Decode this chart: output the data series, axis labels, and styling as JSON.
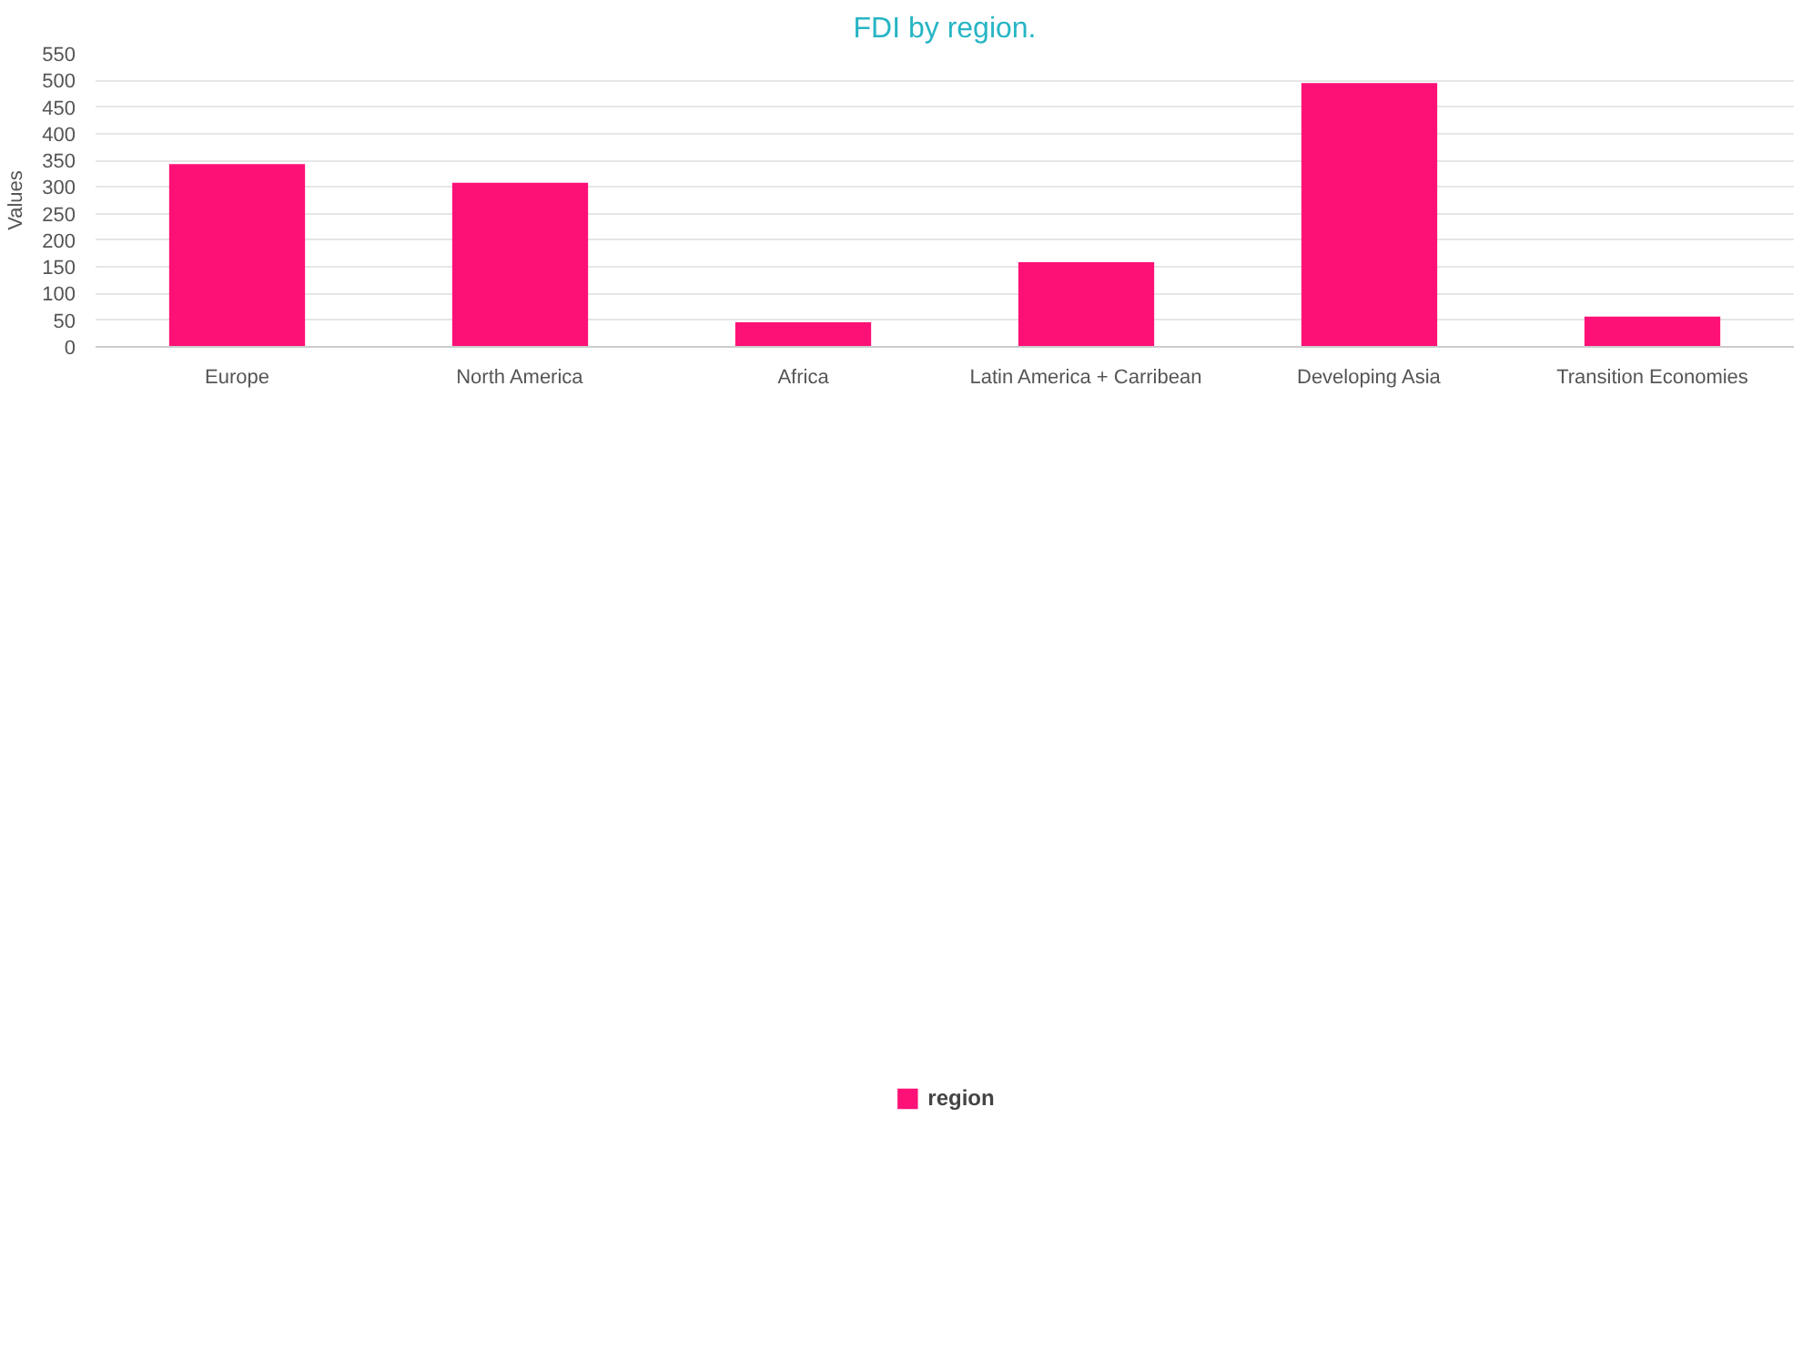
{
  "chart_data": {
    "type": "bar",
    "title": "FDI by region.",
    "ylabel": "Values",
    "categories": [
      "Europe",
      "North America",
      "Africa",
      "Latin America + Carribean",
      "Developing Asia",
      "Transition Economies"
    ],
    "series": [
      {
        "name": "region",
        "color": "#fe1177",
        "values": [
          343,
          308,
          46,
          159,
          495,
          57
        ]
      }
    ],
    "ylim": [
      0,
      550
    ],
    "yticks": [
      0,
      50,
      100,
      150,
      200,
      250,
      300,
      350,
      400,
      450,
      500,
      550
    ],
    "grid": "y",
    "legend": "bottom"
  }
}
